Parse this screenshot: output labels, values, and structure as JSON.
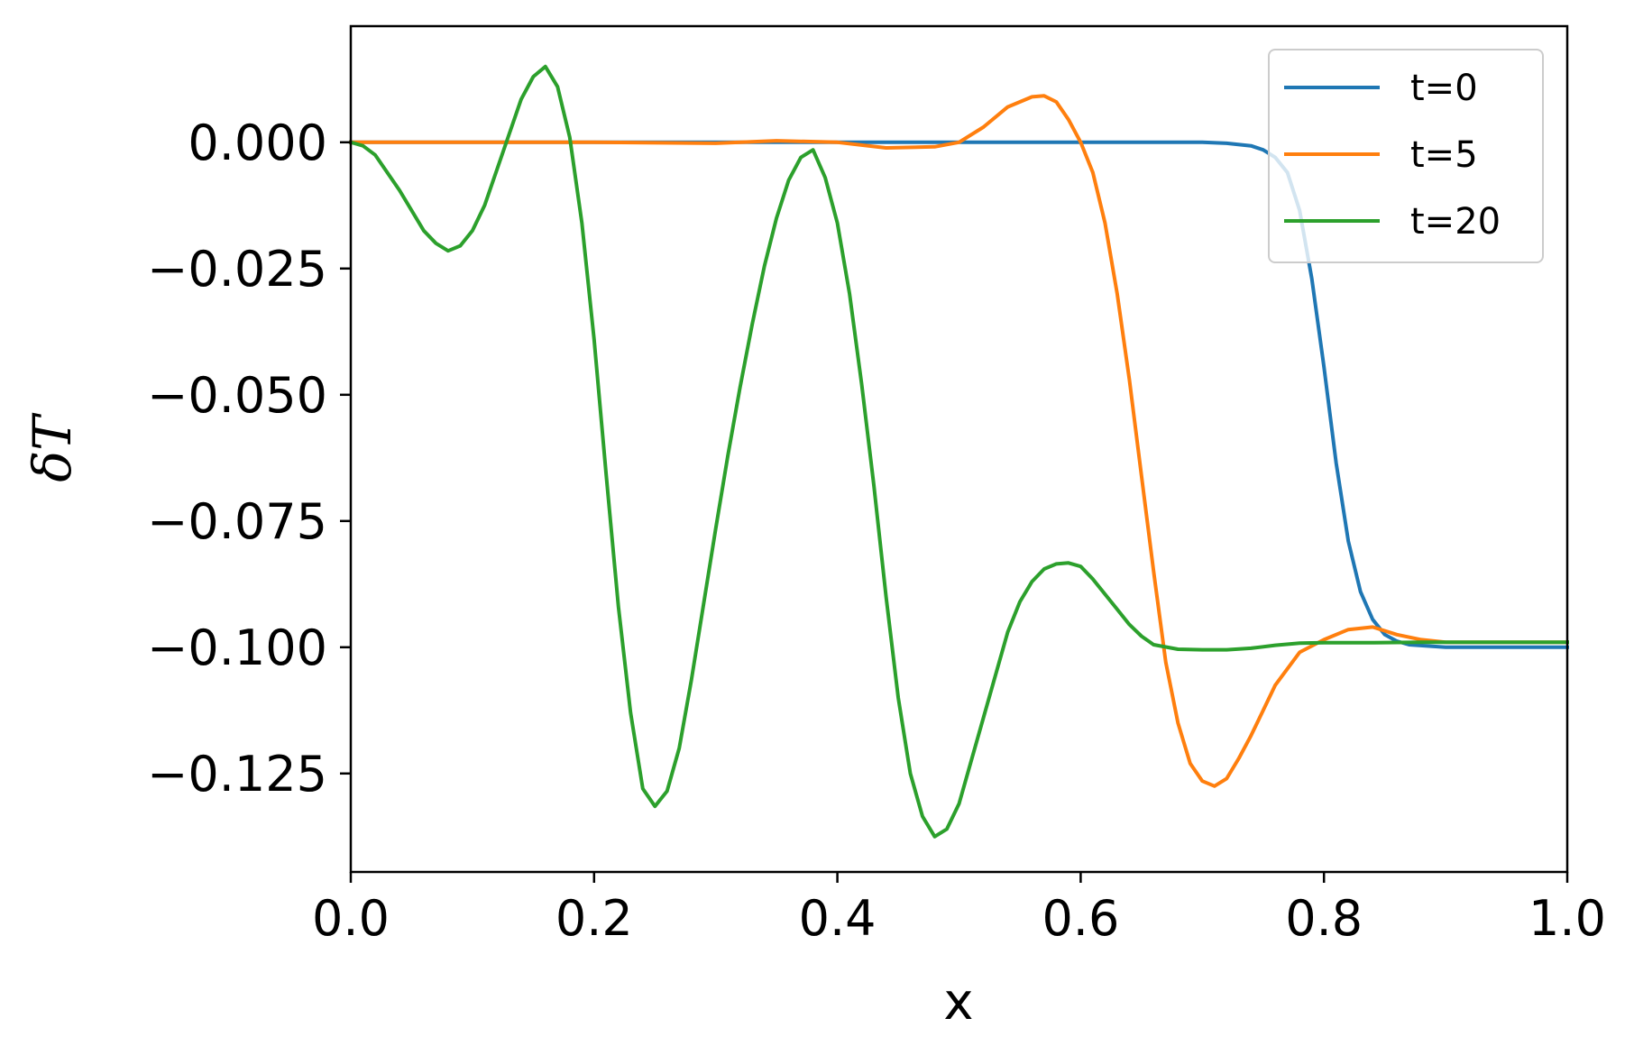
{
  "chart_data": {
    "type": "line",
    "xlabel": "x",
    "ylabel": "δT",
    "xlim": [
      0.0,
      1.0
    ],
    "ylim": [
      -0.1445,
      0.023
    ],
    "xticks": [
      "0.0",
      "0.2",
      "0.4",
      "0.6",
      "0.8",
      "1.0"
    ],
    "xtick_values": [
      0.0,
      0.2,
      0.4,
      0.6,
      0.8,
      1.0
    ],
    "yticks": [
      "0.000",
      "−0.025",
      "−0.050",
      "−0.075",
      "−0.100",
      "−0.125"
    ],
    "ytick_values": [
      0.0,
      -0.025,
      -0.05,
      -0.075,
      -0.1,
      -0.125
    ],
    "grid": false,
    "legend": {
      "position": "top-right"
    },
    "series": [
      {
        "name": "t=0",
        "color": "#1f77b4",
        "x": [
          0.0,
          0.1,
          0.2,
          0.3,
          0.4,
          0.5,
          0.6,
          0.7,
          0.72,
          0.74,
          0.75,
          0.76,
          0.77,
          0.78,
          0.79,
          0.8,
          0.81,
          0.82,
          0.83,
          0.84,
          0.85,
          0.86,
          0.87,
          0.9,
          0.95,
          1.0
        ],
        "y": [
          0.0,
          0.0,
          0.0,
          0.0,
          0.0,
          0.0,
          0.0,
          0.0,
          -0.0002,
          -0.0007,
          -0.0015,
          -0.003,
          -0.006,
          -0.0135,
          -0.027,
          -0.0445,
          -0.0635,
          -0.079,
          -0.089,
          -0.0945,
          -0.0975,
          -0.0988,
          -0.0995,
          -0.1,
          -0.1,
          -0.1
        ]
      },
      {
        "name": "t=5",
        "color": "#ff7f0e",
        "x": [
          0.0,
          0.1,
          0.2,
          0.3,
          0.35,
          0.4,
          0.44,
          0.48,
          0.5,
          0.52,
          0.54,
          0.56,
          0.57,
          0.58,
          0.59,
          0.6,
          0.61,
          0.62,
          0.63,
          0.64,
          0.65,
          0.66,
          0.67,
          0.68,
          0.69,
          0.7,
          0.71,
          0.72,
          0.73,
          0.74,
          0.75,
          0.76,
          0.78,
          0.8,
          0.82,
          0.84,
          0.86,
          0.88,
          0.9,
          0.95,
          1.0
        ],
        "y": [
          0.0,
          0.0,
          0.0,
          -0.0002,
          0.0003,
          0.0,
          -0.0011,
          -0.0009,
          0.0,
          0.003,
          0.007,
          0.009,
          0.0092,
          0.008,
          0.0045,
          0.0,
          -0.006,
          -0.016,
          -0.03,
          -0.047,
          -0.066,
          -0.085,
          -0.103,
          -0.115,
          -0.123,
          -0.1265,
          -0.1275,
          -0.126,
          -0.122,
          -0.1175,
          -0.1125,
          -0.1075,
          -0.101,
          -0.0985,
          -0.0965,
          -0.096,
          -0.0975,
          -0.0985,
          -0.099,
          -0.099,
          -0.099
        ]
      },
      {
        "name": "t=20",
        "color": "#2ca02c",
        "x": [
          0.0,
          0.01,
          0.02,
          0.04,
          0.06,
          0.07,
          0.08,
          0.09,
          0.1,
          0.11,
          0.12,
          0.13,
          0.14,
          0.15,
          0.16,
          0.17,
          0.18,
          0.19,
          0.2,
          0.21,
          0.22,
          0.23,
          0.24,
          0.25,
          0.26,
          0.27,
          0.28,
          0.29,
          0.3,
          0.31,
          0.32,
          0.33,
          0.34,
          0.35,
          0.36,
          0.37,
          0.38,
          0.39,
          0.4,
          0.41,
          0.42,
          0.43,
          0.44,
          0.45,
          0.46,
          0.47,
          0.48,
          0.49,
          0.5,
          0.51,
          0.52,
          0.53,
          0.54,
          0.55,
          0.56,
          0.57,
          0.58,
          0.59,
          0.6,
          0.61,
          0.62,
          0.63,
          0.64,
          0.65,
          0.66,
          0.68,
          0.7,
          0.72,
          0.74,
          0.76,
          0.78,
          0.8,
          0.84,
          0.88,
          0.92,
          1.0
        ],
        "y": [
          0.0,
          -0.0007,
          -0.0025,
          -0.0095,
          -0.0175,
          -0.02,
          -0.0215,
          -0.0205,
          -0.0175,
          -0.0125,
          -0.0055,
          0.0015,
          0.0085,
          0.013,
          0.015,
          0.011,
          0.001,
          -0.016,
          -0.039,
          -0.066,
          -0.092,
          -0.113,
          -0.128,
          -0.1315,
          -0.1285,
          -0.12,
          -0.1065,
          -0.0915,
          -0.0765,
          -0.062,
          -0.0485,
          -0.036,
          -0.0245,
          -0.015,
          -0.0075,
          -0.003,
          -0.0015,
          -0.007,
          -0.016,
          -0.03,
          -0.048,
          -0.068,
          -0.09,
          -0.11,
          -0.125,
          -0.1335,
          -0.1375,
          -0.136,
          -0.131,
          -0.1225,
          -0.114,
          -0.1055,
          -0.097,
          -0.091,
          -0.087,
          -0.0845,
          -0.0835,
          -0.0833,
          -0.084,
          -0.0865,
          -0.0895,
          -0.0925,
          -0.0955,
          -0.0978,
          -0.0995,
          -0.1004,
          -0.1005,
          -0.1005,
          -0.1002,
          -0.0996,
          -0.0992,
          -0.0991,
          -0.0991,
          -0.099,
          -0.099,
          -0.099
        ]
      }
    ]
  }
}
